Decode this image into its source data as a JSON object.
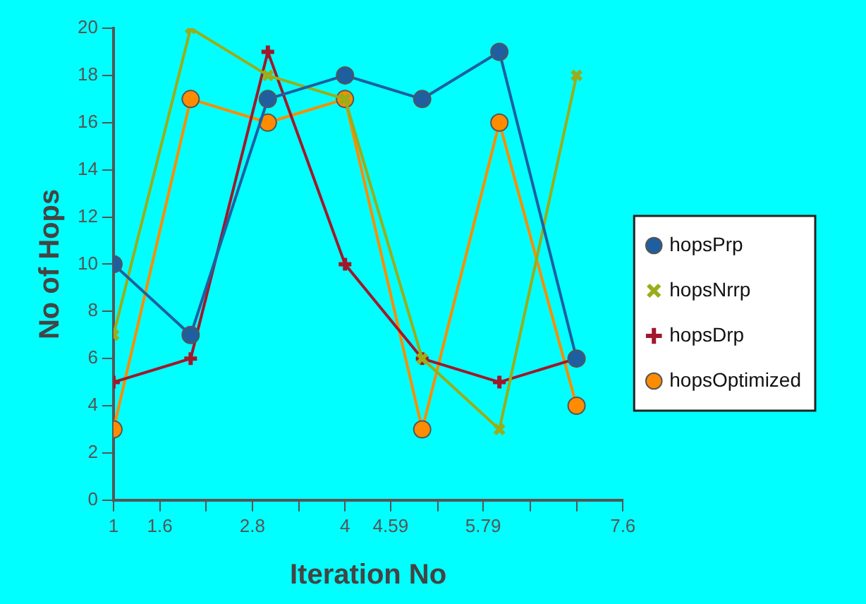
{
  "chart_data": {
    "type": "line",
    "xlabel": "Iteration No",
    "ylabel": "No of Hops",
    "x": [
      1,
      2,
      3,
      4,
      5,
      6,
      7
    ],
    "series": [
      {
        "name": "hopsPrp",
        "color": "#1f5fa0",
        "marker": "circle",
        "values": [
          10,
          7,
          17,
          18,
          17,
          19,
          6
        ]
      },
      {
        "name": "hopsNrrp",
        "color": "#9aad1a",
        "marker": "cross",
        "values": [
          7,
          20,
          18,
          17,
          6,
          3,
          18
        ]
      },
      {
        "name": "hopsDrp",
        "color": "#a0182a",
        "marker": "plus",
        "values": [
          5,
          6,
          19,
          10,
          6,
          5,
          6
        ]
      },
      {
        "name": "hopsOptimized",
        "color": "#ff8c00",
        "marker": "circle",
        "values": [
          3,
          17,
          16,
          17,
          3,
          16,
          4
        ]
      }
    ],
    "xlim": [
      1,
      7.6
    ],
    "xticks": [
      1,
      1.6,
      {
        "value": 2.2,
        "label": null
      },
      2.8,
      {
        "value": 3.4,
        "label": null
      },
      4,
      4.59,
      {
        "value": 5.2,
        "label": null
      },
      5.79,
      {
        "value": 6.4,
        "label": null
      },
      {
        "value": 7,
        "label": null
      },
      7.6
    ],
    "ylim": [
      0,
      20
    ],
    "yticks": [
      0,
      2,
      4,
      6,
      8,
      10,
      12,
      14,
      16,
      18,
      20
    ],
    "grid": false,
    "legend": "right"
  }
}
